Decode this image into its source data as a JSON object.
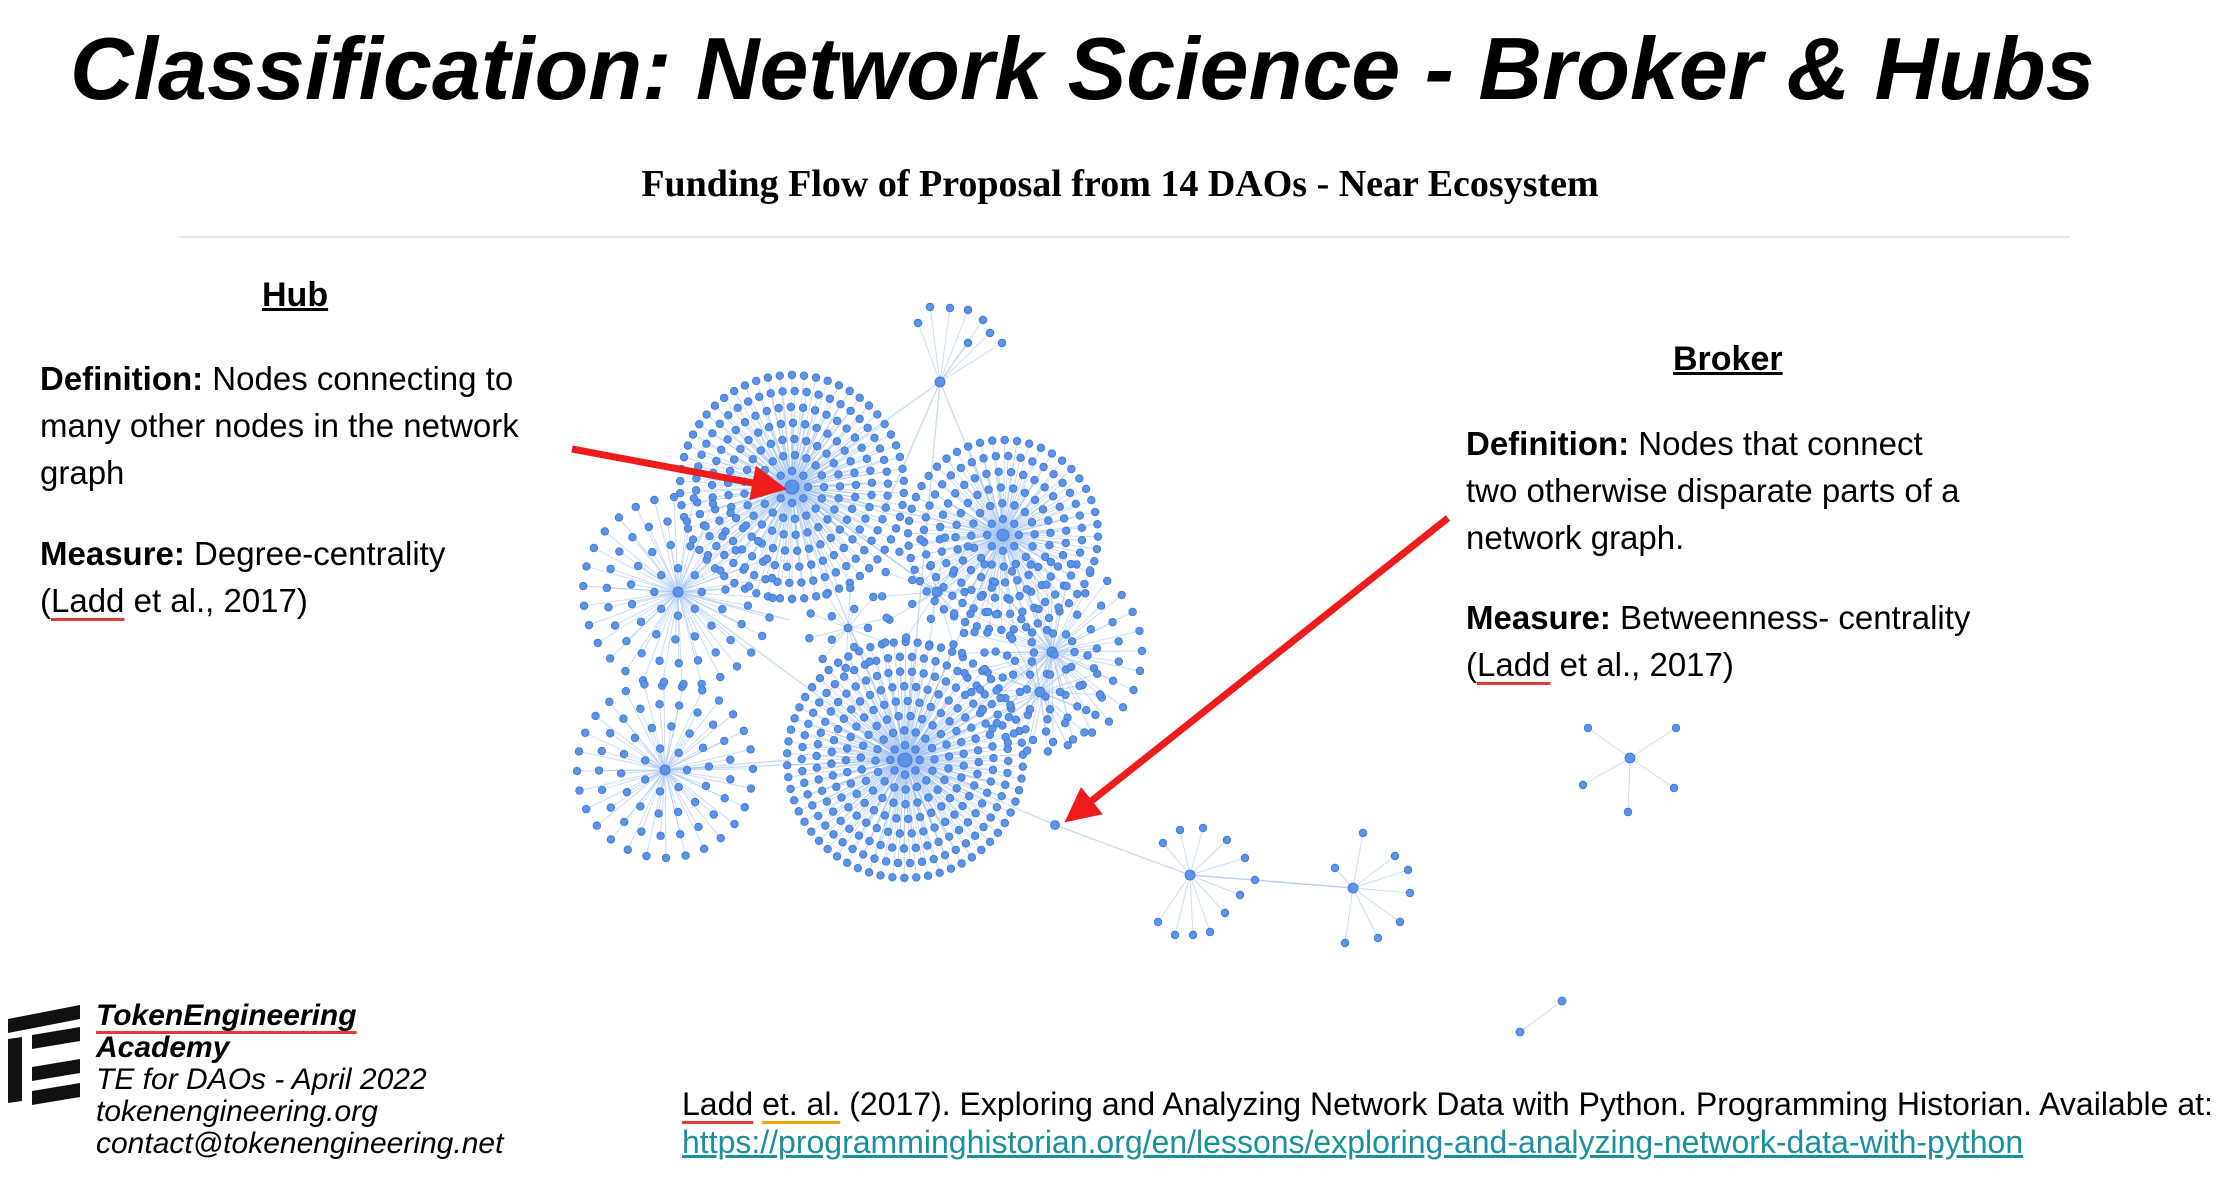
{
  "slide": {
    "title": "Classification: Network Science - Broker & Hubs"
  },
  "graph": {
    "title": "Funding Flow of Proposal from 14 DAOs - Near Ecosystem",
    "node_color": "#5b93e8",
    "edge_color": "#9fc0f0",
    "arrow_color": "#ee1c1c"
  },
  "hub": {
    "heading": "Hub",
    "definition_label": "Definition:",
    "definition_text_1": " Nodes connecting to",
    "definition_text_2": "many other nodes in the network",
    "definition_text_3": "graph",
    "measure_label": "Measure:",
    "measure_text": " Degree-centrality",
    "citation_open": "(",
    "citation_author": "Ladd",
    "citation_rest": " et al., 2017)"
  },
  "broker": {
    "heading": "Broker",
    "definition_label": "Definition:",
    "definition_text_1": " Nodes that connect",
    "definition_text_2": "two otherwise disparate parts of a",
    "definition_text_3": "network graph.",
    "measure_label": "Measure:",
    "measure_text": " Betweenness- centrality",
    "citation_open": "(",
    "citation_author": "Ladd",
    "citation_rest": " et al., 2017)"
  },
  "academy": {
    "name_line_1": "TokenEngineering",
    "name_line_2": "Academy",
    "course": "TE for DAOs - April 2022",
    "website": "tokenengineering.org",
    "email": "contact@tokenengineering.net"
  },
  "reference": {
    "author": "Ladd",
    "etal": "et. al.",
    "text": " (2017). Exploring and Analyzing Network Data with Python. Programming Historian. Available at:",
    "url": "https://programminghistorian.org/en/lessons/exploring-and-analyzing-network-data-with-python"
  }
}
